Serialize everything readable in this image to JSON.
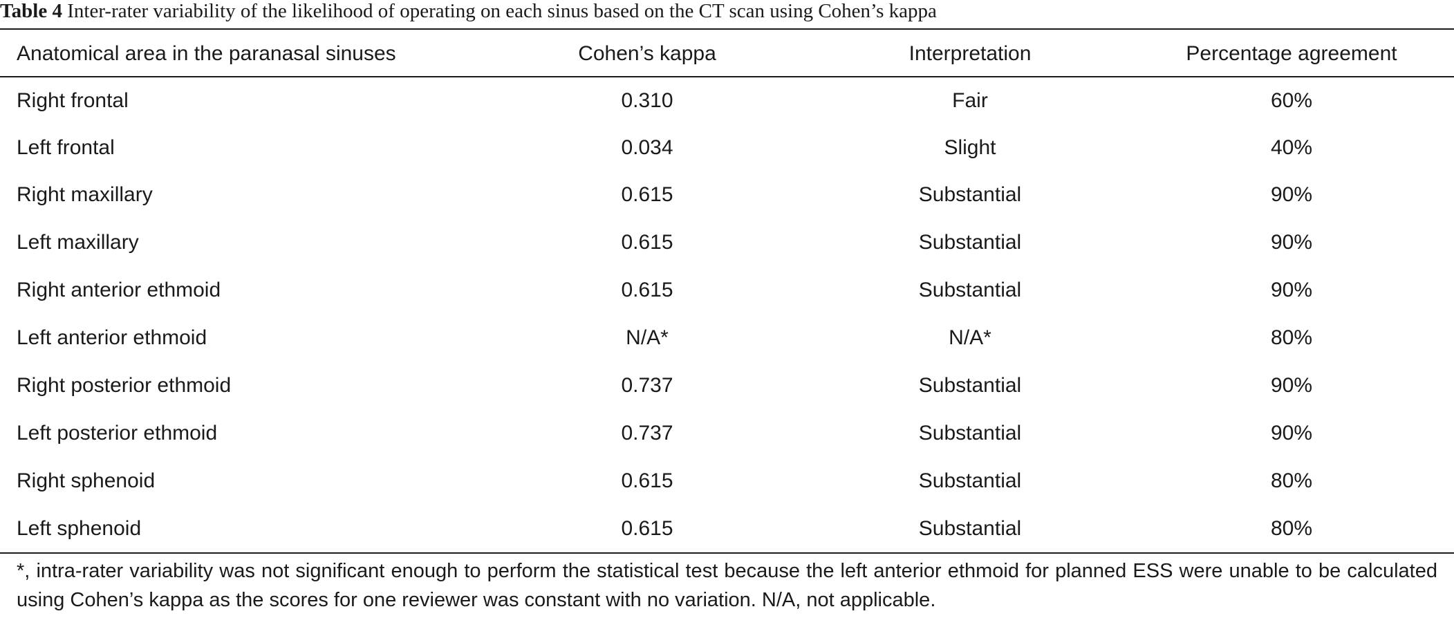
{
  "caption": {
    "label": "Table 4",
    "text": "Inter-rater variability of the likelihood of operating on each sinus based on the CT scan using Cohen’s kappa"
  },
  "columns": [
    "Anatomical area in the paranasal sinuses",
    "Cohen’s kappa",
    "Interpretation",
    "Percentage agreement"
  ],
  "rows": [
    [
      "Right frontal",
      "0.310",
      "Fair",
      "60%"
    ],
    [
      "Left frontal",
      "0.034",
      "Slight",
      "40%"
    ],
    [
      "Right maxillary",
      "0.615",
      "Substantial",
      "90%"
    ],
    [
      "Left maxillary",
      "0.615",
      "Substantial",
      "90%"
    ],
    [
      "Right anterior ethmoid",
      "0.615",
      "Substantial",
      "90%"
    ],
    [
      "Left anterior ethmoid",
      "N/A*",
      "N/A*",
      "80%"
    ],
    [
      "Right posterior ethmoid",
      "0.737",
      "Substantial",
      "90%"
    ],
    [
      "Left posterior ethmoid",
      "0.737",
      "Substantial",
      "90%"
    ],
    [
      "Right sphenoid",
      "0.615",
      "Substantial",
      "80%"
    ],
    [
      "Left sphenoid",
      "0.615",
      "Substantial",
      "80%"
    ]
  ],
  "footnote": "*, intra-rater variability was not significant enough to perform the statistical test because the left anterior ethmoid for planned ESS were unable to be calculated using Cohen’s kappa as the scores for one reviewer was constant with no variation. N/A, not applicable."
}
